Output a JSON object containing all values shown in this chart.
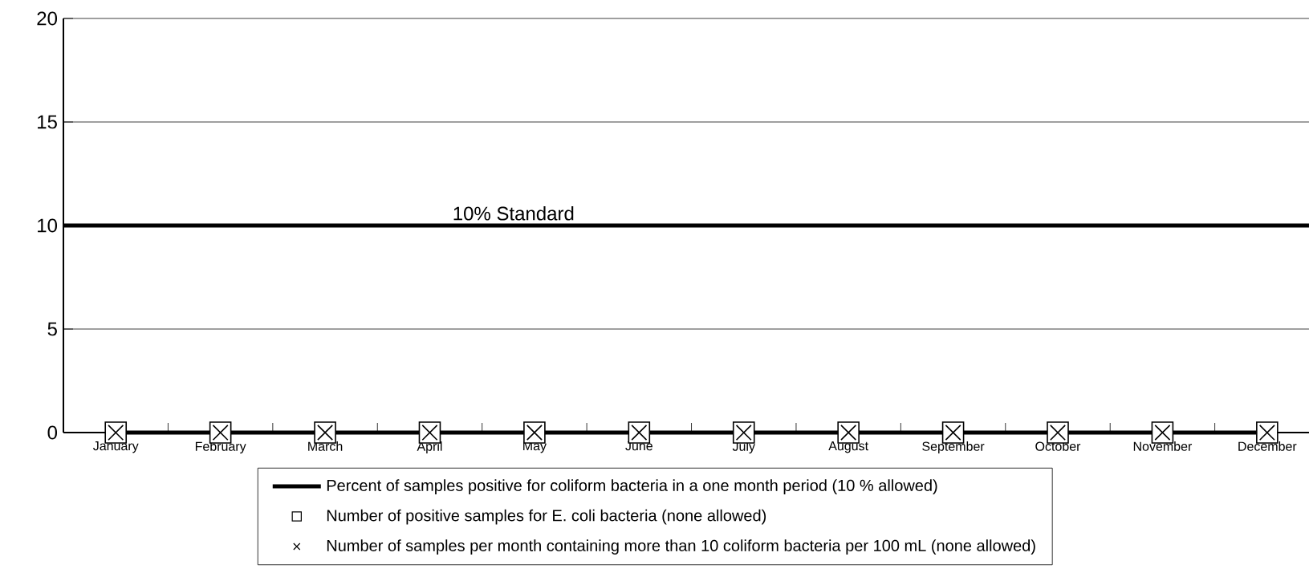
{
  "chart_data": {
    "type": "line",
    "categories": [
      "January",
      "February",
      "March",
      "April",
      "May",
      "June",
      "July",
      "August",
      "September",
      "October",
      "November",
      "December"
    ],
    "series": [
      {
        "name": "Percent of samples positive for coliform bacteria in a one month period (10 % allowed)",
        "marker": "none",
        "color": "#000000",
        "values": [
          0,
          0,
          0,
          0,
          0,
          0,
          0,
          0,
          0,
          0,
          0,
          0
        ]
      },
      {
        "name": "Number of positive samples for E. coli bacteria (none allowed)",
        "type": "scatter",
        "marker": "square",
        "color": "#000000",
        "values": [
          0,
          0,
          0,
          0,
          0,
          0,
          0,
          0,
          0,
          0,
          0,
          0
        ]
      },
      {
        "name": "Number of samples per month containing more than 10 coliform bacteria per 100 mL (none allowed)",
        "type": "scatter",
        "marker": "cross",
        "color": "#000000",
        "values": [
          0,
          0,
          0,
          0,
          0,
          0,
          0,
          0,
          0,
          0,
          0,
          0
        ]
      }
    ],
    "ylim": [
      0,
      20
    ],
    "yticks": [
      0,
      5,
      10,
      15,
      20
    ],
    "grid": "y",
    "legend": "bottom",
    "ref_lines": [
      {
        "axis": "y",
        "value": 10,
        "label": "10% Standard",
        "color": "#000000"
      }
    ]
  }
}
